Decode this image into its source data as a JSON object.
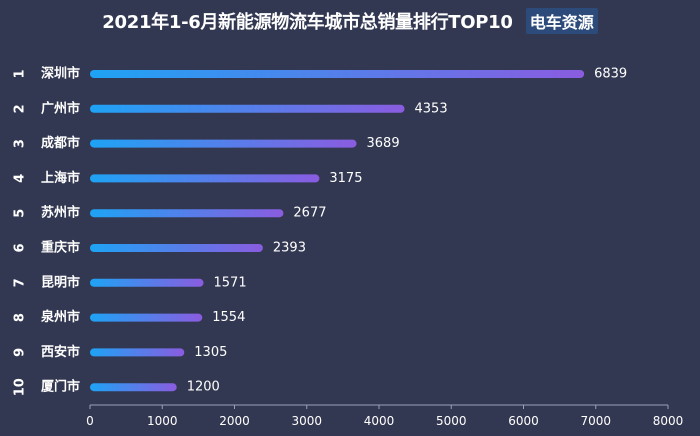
{
  "title": "2021年1-6月新能源物流车城市总销量排行TOP10",
  "brand_logo": "电车资源",
  "colors": {
    "background": "#333852",
    "bar_start": "#1ea3f5",
    "bar_end": "#8a5ce0",
    "text": "#ffffff",
    "axis": "#9aa0b8"
  },
  "chart_data": {
    "type": "bar",
    "orientation": "horizontal",
    "title": "2021年1-6月新能源物流车城市总销量排行TOP10",
    "ranks": [
      "1",
      "2",
      "3",
      "4",
      "5",
      "6",
      "7",
      "8",
      "9",
      "10"
    ],
    "categories": [
      "深圳市",
      "广州市",
      "成都市",
      "上海市",
      "苏州市",
      "重庆市",
      "昆明市",
      "泉州市",
      "西安市",
      "厦门市"
    ],
    "values": [
      6839,
      4353,
      3689,
      3175,
      2677,
      2393,
      1571,
      1554,
      1305,
      1200
    ],
    "xlim": [
      0,
      8000
    ],
    "xticks": [
      0,
      1000,
      2000,
      3000,
      4000,
      5000,
      6000,
      7000,
      8000
    ],
    "grid": false,
    "legend": "none"
  }
}
